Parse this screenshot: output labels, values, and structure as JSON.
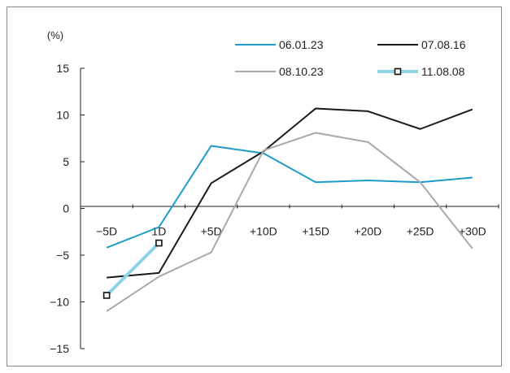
{
  "chart_data": {
    "type": "line",
    "unit_label": "(%)",
    "categories": [
      "−5D",
      "1D",
      "+5D",
      "+10D",
      "+15D",
      "+20D",
      "+25D",
      "+30D"
    ],
    "ylim": [
      -15,
      15
    ],
    "yticks": [
      "15",
      "10",
      "5",
      "0",
      "−5",
      "−10",
      "−15"
    ],
    "ytick_values": [
      15,
      10,
      5,
      0,
      -5,
      -10,
      -15
    ],
    "grid": false,
    "legend_position": "top-right",
    "series": [
      {
        "name": "06.01.23",
        "color": "#1f9bc8",
        "marker": false,
        "values": [
          -4.2,
          -2.0,
          6.7,
          5.9,
          2.8,
          3.0,
          2.8,
          3.3
        ]
      },
      {
        "name": "07.08.16",
        "color": "#1a1a1a",
        "marker": false,
        "values": [
          -7.4,
          -6.9,
          2.7,
          6.1,
          10.7,
          10.4,
          8.5,
          10.6
        ]
      },
      {
        "name": "08.10.23",
        "color": "#a9a9a9",
        "marker": false,
        "values": [
          -11.0,
          -7.3,
          -4.7,
          6.2,
          8.1,
          7.1,
          2.8,
          -4.3
        ]
      },
      {
        "name": "11.08.08",
        "color": "#8fd3e8",
        "marker": true,
        "values": [
          -9.3,
          -3.7,
          null,
          null,
          null,
          null,
          null,
          null
        ]
      }
    ]
  }
}
